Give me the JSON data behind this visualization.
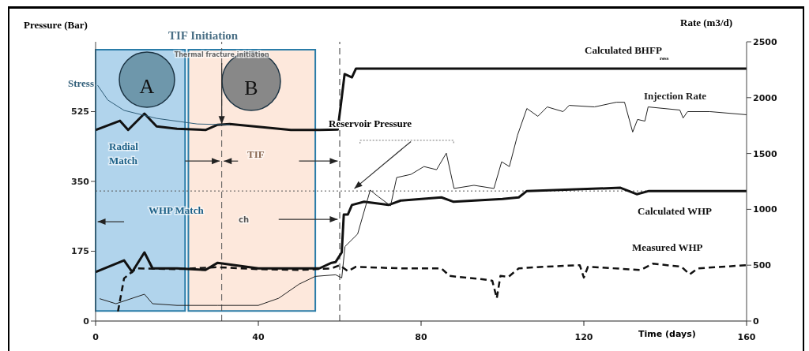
{
  "chart_data": {
    "type": "line",
    "xlabel": "Time (days)",
    "ylabel": "Pressure (Bar)",
    "y2label": "Rate (m3/d)",
    "xlim": [
      0,
      160
    ],
    "xticks": [
      0,
      40,
      80,
      120,
      160
    ],
    "ylim": [
      0,
      700
    ],
    "yticks": [
      0,
      175,
      350,
      525
    ],
    "y2lim": [
      0,
      2500
    ],
    "y2ticks": [
      0,
      500,
      1000,
      1500,
      2000,
      2500
    ],
    "marker": "none",
    "series": [
      {
        "name": "Calculated BHFP",
        "color": "#111111",
        "x": [
          0,
          6,
          8,
          12,
          15,
          20,
          27,
          30,
          33,
          48,
          55,
          59.5,
          60.3,
          61.2,
          63,
          64,
          100,
          160
        ],
        "values": [
          479,
          502,
          479,
          520,
          488,
          482,
          479,
          492,
          494,
          479,
          479,
          480,
          544,
          619,
          611,
          633,
          633,
          633
        ]
      },
      {
        "name": "Calculated WHP",
        "color": "#111111",
        "x": [
          0,
          7,
          9,
          12,
          14,
          20,
          27,
          30,
          40,
          50,
          55,
          58,
          59,
          60.5,
          61,
          62,
          63,
          66,
          72,
          75,
          85,
          88,
          100,
          104,
          106,
          129,
          133,
          136,
          160
        ],
        "values": [
          123,
          152,
          123,
          172,
          132,
          132,
          128,
          146,
          132,
          132,
          132,
          146,
          148,
          172,
          267,
          267,
          291,
          299,
          291,
          302,
          310,
          299,
          306,
          310,
          326,
          334,
          318,
          326,
          326
        ]
      },
      {
        "name": "Measured WHP",
        "color": "#111111",
        "line_style": "dashed",
        "x": [
          5.5,
          7,
          10,
          20,
          30,
          40,
          50,
          58,
          60,
          62,
          64,
          75,
          85,
          87,
          95,
          97.5,
          98.6,
          99.5,
          101.5,
          104,
          110,
          119,
          120,
          121,
          134,
          137,
          144,
          146,
          148,
          160
        ],
        "values": [
          24,
          107,
          132,
          130,
          135,
          130,
          128,
          132,
          140,
          125,
          136,
          132,
          132,
          113,
          105,
          101,
          57,
          113,
          111,
          132,
          136,
          140,
          109,
          136,
          128,
          144,
          136,
          117,
          132,
          140
        ]
      },
      {
        "name": "Injection Rate",
        "color": "#222222",
        "axis": "y2",
        "x": [
          1,
          5,
          12,
          14,
          20,
          30,
          40,
          45,
          50,
          54,
          59,
          60.5,
          61.3,
          64.4,
          67.5,
          69.4,
          72.5,
          74,
          77.5,
          80.7,
          83.8,
          86.2,
          88.1,
          93,
          97.9,
          99.8,
          101.7,
          103.7,
          106,
          108.7,
          111,
          114.9,
          116.4,
          122.6,
          128,
          130,
          132,
          133.2,
          135,
          135.8,
          143.6,
          144.4,
          145.5,
          151,
          160
        ],
        "values": [
          200,
          155,
          240,
          155,
          140,
          140,
          140,
          204,
          330,
          400,
          414,
          386,
          667,
          779,
          1172,
          1116,
          1032,
          1285,
          1313,
          1383,
          1355,
          1503,
          1187,
          1215,
          1187,
          1426,
          1383,
          1664,
          1903,
          1833,
          1917,
          1875,
          1931,
          1917,
          1959,
          1959,
          1692,
          1805,
          1790,
          1917,
          1889,
          1818,
          1875,
          1875,
          1847
        ]
      },
      {
        "name": "Stress",
        "color": "#2f5d78",
        "x": [
          0.5,
          3,
          7,
          15,
          25,
          33
        ],
        "values": [
          591,
          554,
          528,
          508,
          494,
          492
        ]
      }
    ],
    "ref_lines": [
      {
        "axis": "y",
        "value": 326,
        "label": "Reservoir Pressure",
        "line_style": "dotted",
        "color": "#555555"
      },
      {
        "axis": "x",
        "value": 60,
        "line_style": "dashed",
        "color": "#333333"
      },
      {
        "axis": "x",
        "value": 31,
        "line_style": "dashed",
        "color": "#555555"
      }
    ],
    "bands": [
      {
        "axis": "x",
        "from": 0,
        "to": 22,
        "label": "A",
        "color": "#a9cfea"
      },
      {
        "axis": "x",
        "from": 22.8,
        "to": 54,
        "label": "B",
        "color": "#fde6d8"
      }
    ],
    "annotations": [
      "TIF Initiation",
      {
        "text": "Thermal fracture initiation",
        "x": 31,
        "y": 494
      },
      "ress",
      "Radial Match",
      "TIF",
      "WHP Match",
      "ch"
    ]
  }
}
